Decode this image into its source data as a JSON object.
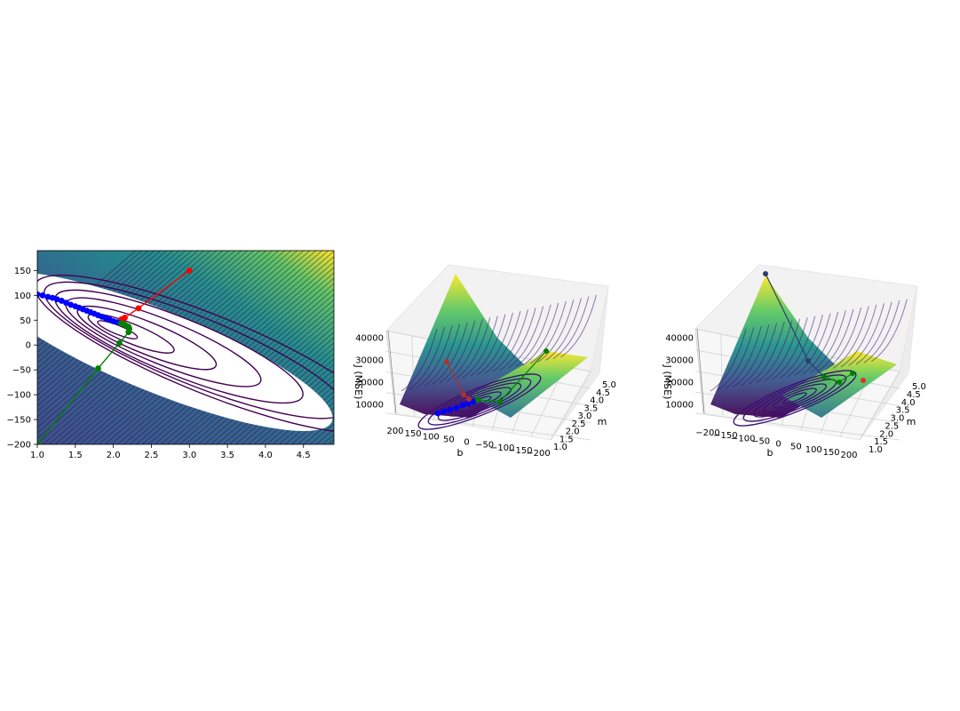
{
  "chart_data": [
    {
      "type": "contour",
      "colormap": "viridis",
      "x_ticks": [
        "1.0",
        "1.5",
        "2.0",
        "2.5",
        "3.0",
        "3.5",
        "4.0",
        "4.5"
      ],
      "y_ticks": [
        "150",
        "100",
        "50",
        "0",
        "−50",
        "−100",
        "−150",
        "−200"
      ],
      "xlim": [
        1.0,
        4.9
      ],
      "ylim": [
        -200,
        190
      ],
      "grid": false,
      "contour_min": [
        1.9,
        37
      ],
      "series": [
        {
          "color": "#ff0000",
          "points": [
            [
              3.0,
              150
            ],
            [
              2.33,
              74
            ],
            [
              2.15,
              55
            ],
            [
              2.11,
              52
            ]
          ]
        },
        {
          "color": "#0000ff",
          "points": [
            [
              1.0,
              102
            ],
            [
              1.07,
              100
            ],
            [
              1.14,
              97
            ],
            [
              1.2,
              95
            ],
            [
              1.26,
              92
            ],
            [
              1.32,
              89
            ],
            [
              1.38,
              85
            ],
            [
              1.44,
              81
            ],
            [
              1.5,
              78
            ],
            [
              1.55,
              75
            ],
            [
              1.6,
              72
            ],
            [
              1.65,
              69
            ],
            [
              1.7,
              66
            ],
            [
              1.75,
              63
            ],
            [
              1.8,
              60
            ],
            [
              1.85,
              57
            ],
            [
              1.9,
              54
            ],
            [
              1.95,
              51
            ],
            [
              2.0,
              48
            ],
            [
              2.05,
              46
            ],
            [
              2.1,
              44
            ]
          ]
        },
        {
          "color": "#008000",
          "points": [
            [
              1.0,
              -200
            ],
            [
              1.8,
              -47
            ],
            [
              2.08,
              4
            ],
            [
              2.2,
              26
            ],
            [
              2.21,
              33
            ],
            [
              2.2,
              37
            ],
            [
              2.17,
              39
            ],
            [
              2.14,
              42
            ],
            [
              2.1,
              44
            ]
          ]
        }
      ]
    },
    {
      "type": "surface3d",
      "colormap": "viridis",
      "xlabel": "b",
      "ylabel": "m",
      "zlabel": "J (MSE)",
      "b_ticks": [
        "200",
        "150",
        "100",
        "50",
        "0",
        "−50",
        "−100",
        "−150",
        "−200"
      ],
      "m_ticks": [
        "1.0",
        "1.5",
        "2.0",
        "2.5",
        "3.0",
        "3.5",
        "4.0",
        "4.5",
        "5.0"
      ],
      "z_ticks": [
        "10000",
        "20000",
        "30000",
        "40000"
      ],
      "grid": true
    },
    {
      "type": "surface3d",
      "colormap": "viridis",
      "xlabel": "b",
      "ylabel": "m",
      "zlabel": "J (MSE)",
      "b_ticks": [
        "−200",
        "−150",
        "−100",
        "−50",
        "0",
        "50",
        "100",
        "150",
        "200"
      ],
      "m_ticks": [
        "1.0",
        "1.5",
        "2.0",
        "2.5",
        "3.0",
        "3.5",
        "4.0",
        "4.5",
        "5.0"
      ],
      "z_ticks": [
        "10000",
        "20000",
        "30000",
        "40000"
      ],
      "grid": true
    }
  ]
}
